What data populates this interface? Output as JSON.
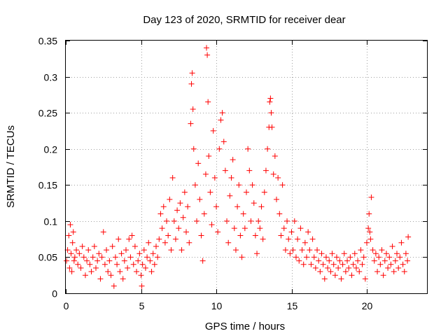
{
  "chart_data": {
    "type": "scatter",
    "title": "Day 123 of 2020, SRMTID for receiver dear",
    "xlabel": "GPS time / hours",
    "ylabel": "SRMTID / TECUs",
    "xlim": [
      0,
      24
    ],
    "ylim": [
      0,
      0.35
    ],
    "x_ticks": [
      0,
      5,
      10,
      15,
      20
    ],
    "x_tick_labels": [
      "0",
      "5",
      "10",
      "15",
      "20"
    ],
    "y_ticks": [
      0,
      0.05,
      0.1,
      0.15,
      0.2,
      0.25,
      0.3,
      0.35
    ],
    "y_tick_labels": [
      "0",
      "0.05",
      "0.1",
      "0.15",
      "0.2",
      "0.25",
      "0.3",
      "0.35"
    ],
    "grid": true,
    "marker": "+",
    "color": "#ff0000",
    "series": [
      {
        "name": "SRMTID",
        "points": [
          [
            0.05,
            0.045
          ],
          [
            0.12,
            0.06
          ],
          [
            0.2,
            0.08
          ],
          [
            0.25,
            0.035
          ],
          [
            0.3,
            0.095
          ],
          [
            0.35,
            0.055
          ],
          [
            0.4,
            0.03
          ],
          [
            0.45,
            0.07
          ],
          [
            0.5,
            0.085
          ],
          [
            0.55,
            0.045
          ],
          [
            0.6,
            0.05
          ],
          [
            0.7,
            0.06
          ],
          [
            0.8,
            0.04
          ],
          [
            0.9,
            0.055
          ],
          [
            1.0,
            0.035
          ],
          [
            1.1,
            0.065
          ],
          [
            1.2,
            0.05
          ],
          [
            1.3,
            0.025
          ],
          [
            1.4,
            0.045
          ],
          [
            1.5,
            0.06
          ],
          [
            1.6,
            0.04
          ],
          [
            1.7,
            0.03
          ],
          [
            1.8,
            0.05
          ],
          [
            1.9,
            0.065
          ],
          [
            2.0,
            0.035
          ],
          [
            2.1,
            0.045
          ],
          [
            2.2,
            0.055
          ],
          [
            2.3,
            0.02
          ],
          [
            2.4,
            0.05
          ],
          [
            2.5,
            0.085
          ],
          [
            2.6,
            0.04
          ],
          [
            2.7,
            0.06
          ],
          [
            2.8,
            0.03
          ],
          [
            2.9,
            0.045
          ],
          [
            3.0,
            0.025
          ],
          [
            3.1,
            0.065
          ],
          [
            3.2,
            0.01
          ],
          [
            3.3,
            0.05
          ],
          [
            3.4,
            0.04
          ],
          [
            3.5,
            0.075
          ],
          [
            3.6,
            0.03
          ],
          [
            3.7,
            0.055
          ],
          [
            3.8,
            0.02
          ],
          [
            3.9,
            0.045
          ],
          [
            4.0,
            0.06
          ],
          [
            4.1,
            0.035
          ],
          [
            4.2,
            0.075
          ],
          [
            4.3,
            0.05
          ],
          [
            4.4,
            0.08
          ],
          [
            4.5,
            0.04
          ],
          [
            4.6,
            0.065
          ],
          [
            4.7,
            0.03
          ],
          [
            4.8,
            0.045
          ],
          [
            4.9,
            0.055
          ],
          [
            5.0,
            0.025
          ],
          [
            5.05,
            0.01
          ],
          [
            5.1,
            0.04
          ],
          [
            5.2,
            0.06
          ],
          [
            5.3,
            0.035
          ],
          [
            5.4,
            0.05
          ],
          [
            5.5,
            0.07
          ],
          [
            5.6,
            0.045
          ],
          [
            5.7,
            0.03
          ],
          [
            5.8,
            0.055
          ],
          [
            5.9,
            0.04
          ],
          [
            6.0,
            0.065
          ],
          [
            6.1,
            0.05
          ],
          [
            6.2,
            0.075
          ],
          [
            6.3,
            0.11
          ],
          [
            6.4,
            0.09
          ],
          [
            6.5,
            0.12
          ],
          [
            6.6,
            0.07
          ],
          [
            6.7,
            0.1
          ],
          [
            6.8,
            0.08
          ],
          [
            6.9,
            0.13
          ],
          [
            7.0,
            0.06
          ],
          [
            7.1,
            0.16
          ],
          [
            7.2,
            0.1
          ],
          [
            7.3,
            0.075
          ],
          [
            7.4,
            0.115
          ],
          [
            7.5,
            0.09
          ],
          [
            7.6,
            0.125
          ],
          [
            7.7,
            0.06
          ],
          [
            7.8,
            0.105
          ],
          [
            7.9,
            0.14
          ],
          [
            8.0,
            0.085
          ],
          [
            8.1,
            0.12
          ],
          [
            8.2,
            0.07
          ],
          [
            8.3,
            0.235
          ],
          [
            8.35,
            0.29
          ],
          [
            8.4,
            0.305
          ],
          [
            8.45,
            0.255
          ],
          [
            8.5,
            0.2
          ],
          [
            8.6,
            0.15
          ],
          [
            8.7,
            0.1
          ],
          [
            8.8,
            0.18
          ],
          [
            8.9,
            0.13
          ],
          [
            9.0,
            0.08
          ],
          [
            9.1,
            0.045
          ],
          [
            9.2,
            0.11
          ],
          [
            9.3,
            0.165
          ],
          [
            9.35,
            0.34
          ],
          [
            9.4,
            0.33
          ],
          [
            9.45,
            0.265
          ],
          [
            9.5,
            0.19
          ],
          [
            9.6,
            0.14
          ],
          [
            9.7,
            0.095
          ],
          [
            9.8,
            0.225
          ],
          [
            9.9,
            0.16
          ],
          [
            10.0,
            0.12
          ],
          [
            10.1,
            0.085
          ],
          [
            10.2,
            0.2
          ],
          [
            10.3,
            0.24
          ],
          [
            10.4,
            0.25
          ],
          [
            10.5,
            0.21
          ],
          [
            10.6,
            0.17
          ],
          [
            10.7,
            0.1
          ],
          [
            10.8,
            0.07
          ],
          [
            10.9,
            0.135
          ],
          [
            11.0,
            0.16
          ],
          [
            11.1,
            0.185
          ],
          [
            11.2,
            0.09
          ],
          [
            11.3,
            0.06
          ],
          [
            11.4,
            0.12
          ],
          [
            11.5,
            0.15
          ],
          [
            11.6,
            0.08
          ],
          [
            11.7,
            0.05
          ],
          [
            11.8,
            0.11
          ],
          [
            11.9,
            0.09
          ],
          [
            12.0,
            0.14
          ],
          [
            12.1,
            0.2
          ],
          [
            12.2,
            0.17
          ],
          [
            12.3,
            0.1
          ],
          [
            12.4,
            0.15
          ],
          [
            12.5,
            0.125
          ],
          [
            12.6,
            0.08
          ],
          [
            12.7,
            0.055
          ],
          [
            12.8,
            0.1
          ],
          [
            12.9,
            0.09
          ],
          [
            13.0,
            0.12
          ],
          [
            13.1,
            0.075
          ],
          [
            13.2,
            0.14
          ],
          [
            13.3,
            0.17
          ],
          [
            13.4,
            0.2
          ],
          [
            13.5,
            0.23
          ],
          [
            13.55,
            0.265
          ],
          [
            13.6,
            0.27
          ],
          [
            13.65,
            0.25
          ],
          [
            13.7,
            0.23
          ],
          [
            13.8,
            0.165
          ],
          [
            13.9,
            0.19
          ],
          [
            14.0,
            0.13
          ],
          [
            14.1,
            0.16
          ],
          [
            14.2,
            0.11
          ],
          [
            14.3,
            0.08
          ],
          [
            14.4,
            0.15
          ],
          [
            14.5,
            0.09
          ],
          [
            14.6,
            0.06
          ],
          [
            14.7,
            0.1
          ],
          [
            14.8,
            0.075
          ],
          [
            14.9,
            0.055
          ],
          [
            15.0,
            0.085
          ],
          [
            15.1,
            0.06
          ],
          [
            15.2,
            0.1
          ],
          [
            15.3,
            0.05
          ],
          [
            15.4,
            0.075
          ],
          [
            15.5,
            0.045
          ],
          [
            15.6,
            0.09
          ],
          [
            15.7,
            0.06
          ],
          [
            15.8,
            0.04
          ],
          [
            15.9,
            0.07
          ],
          [
            16.0,
            0.05
          ],
          [
            16.1,
            0.085
          ],
          [
            16.2,
            0.06
          ],
          [
            16.3,
            0.04
          ],
          [
            16.4,
            0.075
          ],
          [
            16.5,
            0.05
          ],
          [
            16.6,
            0.035
          ],
          [
            16.7,
            0.06
          ],
          [
            16.8,
            0.045
          ],
          [
            16.9,
            0.03
          ],
          [
            17.0,
            0.055
          ],
          [
            17.1,
            0.04
          ],
          [
            17.2,
            0.02
          ],
          [
            17.3,
            0.05
          ],
          [
            17.4,
            0.035
          ],
          [
            17.5,
            0.045
          ],
          [
            17.6,
            0.03
          ],
          [
            17.7,
            0.055
          ],
          [
            17.8,
            0.04
          ],
          [
            17.9,
            0.025
          ],
          [
            18.0,
            0.05
          ],
          [
            18.1,
            0.035
          ],
          [
            18.2,
            0.045
          ],
          [
            18.3,
            0.02
          ],
          [
            18.4,
            0.04
          ],
          [
            18.5,
            0.055
          ],
          [
            18.6,
            0.03
          ],
          [
            18.7,
            0.045
          ],
          [
            18.8,
            0.035
          ],
          [
            18.9,
            0.05
          ],
          [
            19.0,
            0.025
          ],
          [
            19.1,
            0.04
          ],
          [
            19.2,
            0.055
          ],
          [
            19.3,
            0.035
          ],
          [
            19.4,
            0.045
          ],
          [
            19.5,
            0.03
          ],
          [
            19.6,
            0.06
          ],
          [
            19.7,
            0.04
          ],
          [
            19.8,
            0.05
          ],
          [
            19.9,
            0.02
          ],
          [
            20.0,
            0.07
          ],
          [
            20.1,
            0.09
          ],
          [
            20.15,
            0.11
          ],
          [
            20.2,
            0.085
          ],
          [
            20.25,
            0.075
          ],
          [
            20.3,
            0.133
          ],
          [
            20.4,
            0.06
          ],
          [
            20.5,
            0.045
          ],
          [
            20.6,
            0.055
          ],
          [
            20.7,
            0.03
          ],
          [
            20.8,
            0.05
          ],
          [
            20.9,
            0.04
          ],
          [
            21.0,
            0.06
          ],
          [
            21.1,
            0.025
          ],
          [
            21.2,
            0.045
          ],
          [
            21.3,
            0.055
          ],
          [
            21.4,
            0.035
          ],
          [
            21.5,
            0.05
          ],
          [
            21.6,
            0.04
          ],
          [
            21.7,
            0.065
          ],
          [
            21.8,
            0.03
          ],
          [
            21.9,
            0.045
          ],
          [
            22.0,
            0.055
          ],
          [
            22.1,
            0.035
          ],
          [
            22.2,
            0.05
          ],
          [
            22.3,
            0.07
          ],
          [
            22.4,
            0.04
          ],
          [
            22.5,
            0.03
          ],
          [
            22.6,
            0.055
          ],
          [
            22.7,
            0.045
          ],
          [
            22.75,
            0.078
          ]
        ]
      }
    ]
  }
}
